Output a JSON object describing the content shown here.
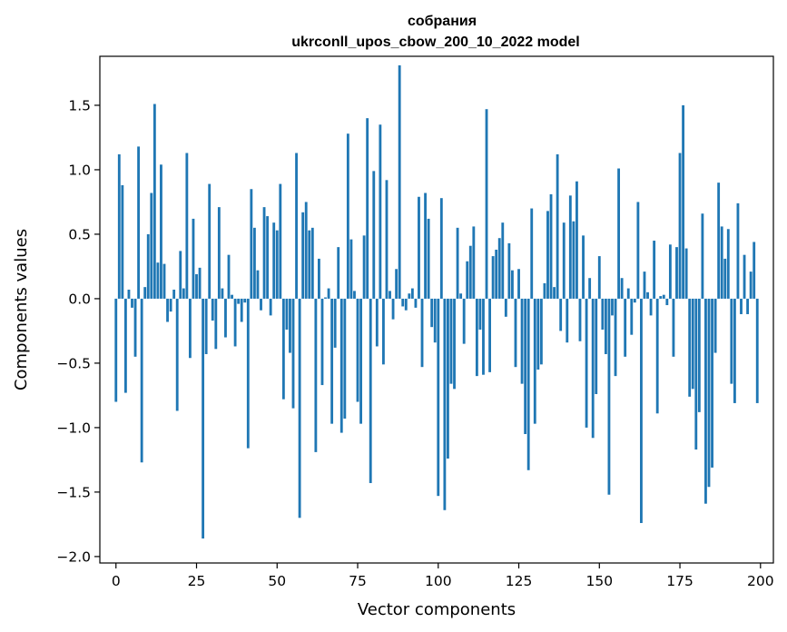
{
  "chart_data": {
    "type": "bar",
    "title": "собрания",
    "subtitle": "ukrconll_upos_cbow_200_10_2022 model",
    "xlabel": "Vector components",
    "ylabel": "Components values",
    "xlim": [
      -5,
      204
    ],
    "ylim": [
      -2.05,
      1.88
    ],
    "xticks": [
      0,
      25,
      50,
      75,
      100,
      125,
      150,
      175,
      200
    ],
    "yticks": [
      -2.0,
      -1.5,
      -1.0,
      -0.5,
      0.0,
      0.5,
      1.0,
      1.5
    ],
    "ytick_labels": [
      "−2.0",
      "−1.5",
      "−1.0",
      "−0.5",
      "0.0",
      "0.5",
      "1.0",
      "1.5"
    ],
    "grid": false,
    "bar_color": "#1f77b4",
    "values": [
      -0.8,
      1.12,
      0.88,
      -0.73,
      0.07,
      -0.07,
      -0.45,
      1.18,
      -1.27,
      0.09,
      0.5,
      0.82,
      1.51,
      0.28,
      1.04,
      0.27,
      -0.18,
      -0.1,
      0.07,
      -0.87,
      0.37,
      0.08,
      1.13,
      -0.46,
      0.62,
      0.19,
      0.24,
      -1.86,
      -0.43,
      0.89,
      -0.17,
      -0.39,
      0.71,
      0.08,
      -0.3,
      0.34,
      0.03,
      -0.37,
      -0.04,
      -0.18,
      -0.03,
      -1.16,
      0.85,
      0.55,
      0.22,
      -0.09,
      0.71,
      0.64,
      -0.13,
      0.59,
      0.53,
      0.89,
      -0.78,
      -0.24,
      -0.42,
      -0.85,
      1.13,
      -1.7,
      0.67,
      0.75,
      0.53,
      0.55,
      -1.19,
      0.31,
      -0.67,
      0.01,
      0.08,
      -0.97,
      -0.38,
      0.4,
      -1.04,
      -0.93,
      1.28,
      0.46,
      0.06,
      -0.8,
      -0.97,
      0.49,
      1.4,
      -1.43,
      0.99,
      -0.37,
      1.35,
      -0.51,
      0.92,
      0.06,
      -0.16,
      0.23,
      1.81,
      -0.06,
      -0.09,
      0.04,
      0.08,
      -0.07,
      0.79,
      -0.53,
      0.82,
      0.62,
      -0.22,
      -0.34,
      -1.53,
      0.78,
      -1.64,
      -1.24,
      -0.66,
      -0.7,
      0.55,
      0.04,
      -0.35,
      0.29,
      0.41,
      0.56,
      -0.6,
      -0.24,
      -0.59,
      1.47,
      -0.57,
      0.33,
      0.38,
      0.47,
      0.59,
      -0.14,
      0.43,
      0.22,
      -0.53,
      0.23,
      -0.66,
      -1.05,
      -1.33,
      0.7,
      -0.97,
      -0.55,
      -0.51,
      0.12,
      0.68,
      0.81,
      0.09,
      1.12,
      -0.25,
      0.59,
      -0.34,
      0.8,
      0.6,
      0.91,
      -0.33,
      0.49,
      -1.0,
      0.16,
      -1.08,
      -0.74,
      0.33,
      -0.24,
      -0.43,
      -1.52,
      -0.13,
      -0.6,
      1.01,
      0.16,
      -0.45,
      0.08,
      -0.28,
      -0.03,
      0.75,
      -1.74,
      0.21,
      0.05,
      -0.13,
      0.45,
      -0.89,
      0.02,
      0.03,
      -0.05,
      0.42,
      -0.45,
      0.4,
      1.13,
      1.5,
      0.39,
      -0.76,
      -0.7,
      -1.17,
      -0.88,
      0.66,
      -1.59,
      -1.46,
      -1.31,
      -0.42,
      0.9,
      0.56,
      0.31,
      0.54,
      -0.66,
      -0.81,
      0.74,
      -0.12,
      0.34,
      -0.12,
      0.21,
      0.44,
      -0.81
    ]
  }
}
